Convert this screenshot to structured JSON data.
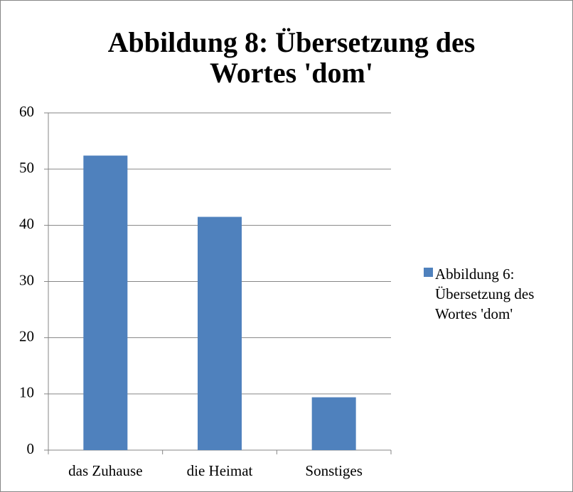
{
  "chart_data": {
    "type": "bar",
    "title": "Abbildung 8: Übersetzung des Wortes 'dom'",
    "categories": [
      "das Zuhause",
      "die Heimat",
      "Sonstiges"
    ],
    "series": [
      {
        "name": "Abbildung 6: Übersetzung des Wortes 'dom'",
        "color": "#4f81bd",
        "values": [
          52.4,
          41.5,
          9.4
        ]
      }
    ],
    "ylim": [
      0,
      60
    ],
    "yticks": [
      0,
      10,
      20,
      30,
      40,
      50,
      60
    ],
    "grid": true,
    "legend": "right"
  }
}
